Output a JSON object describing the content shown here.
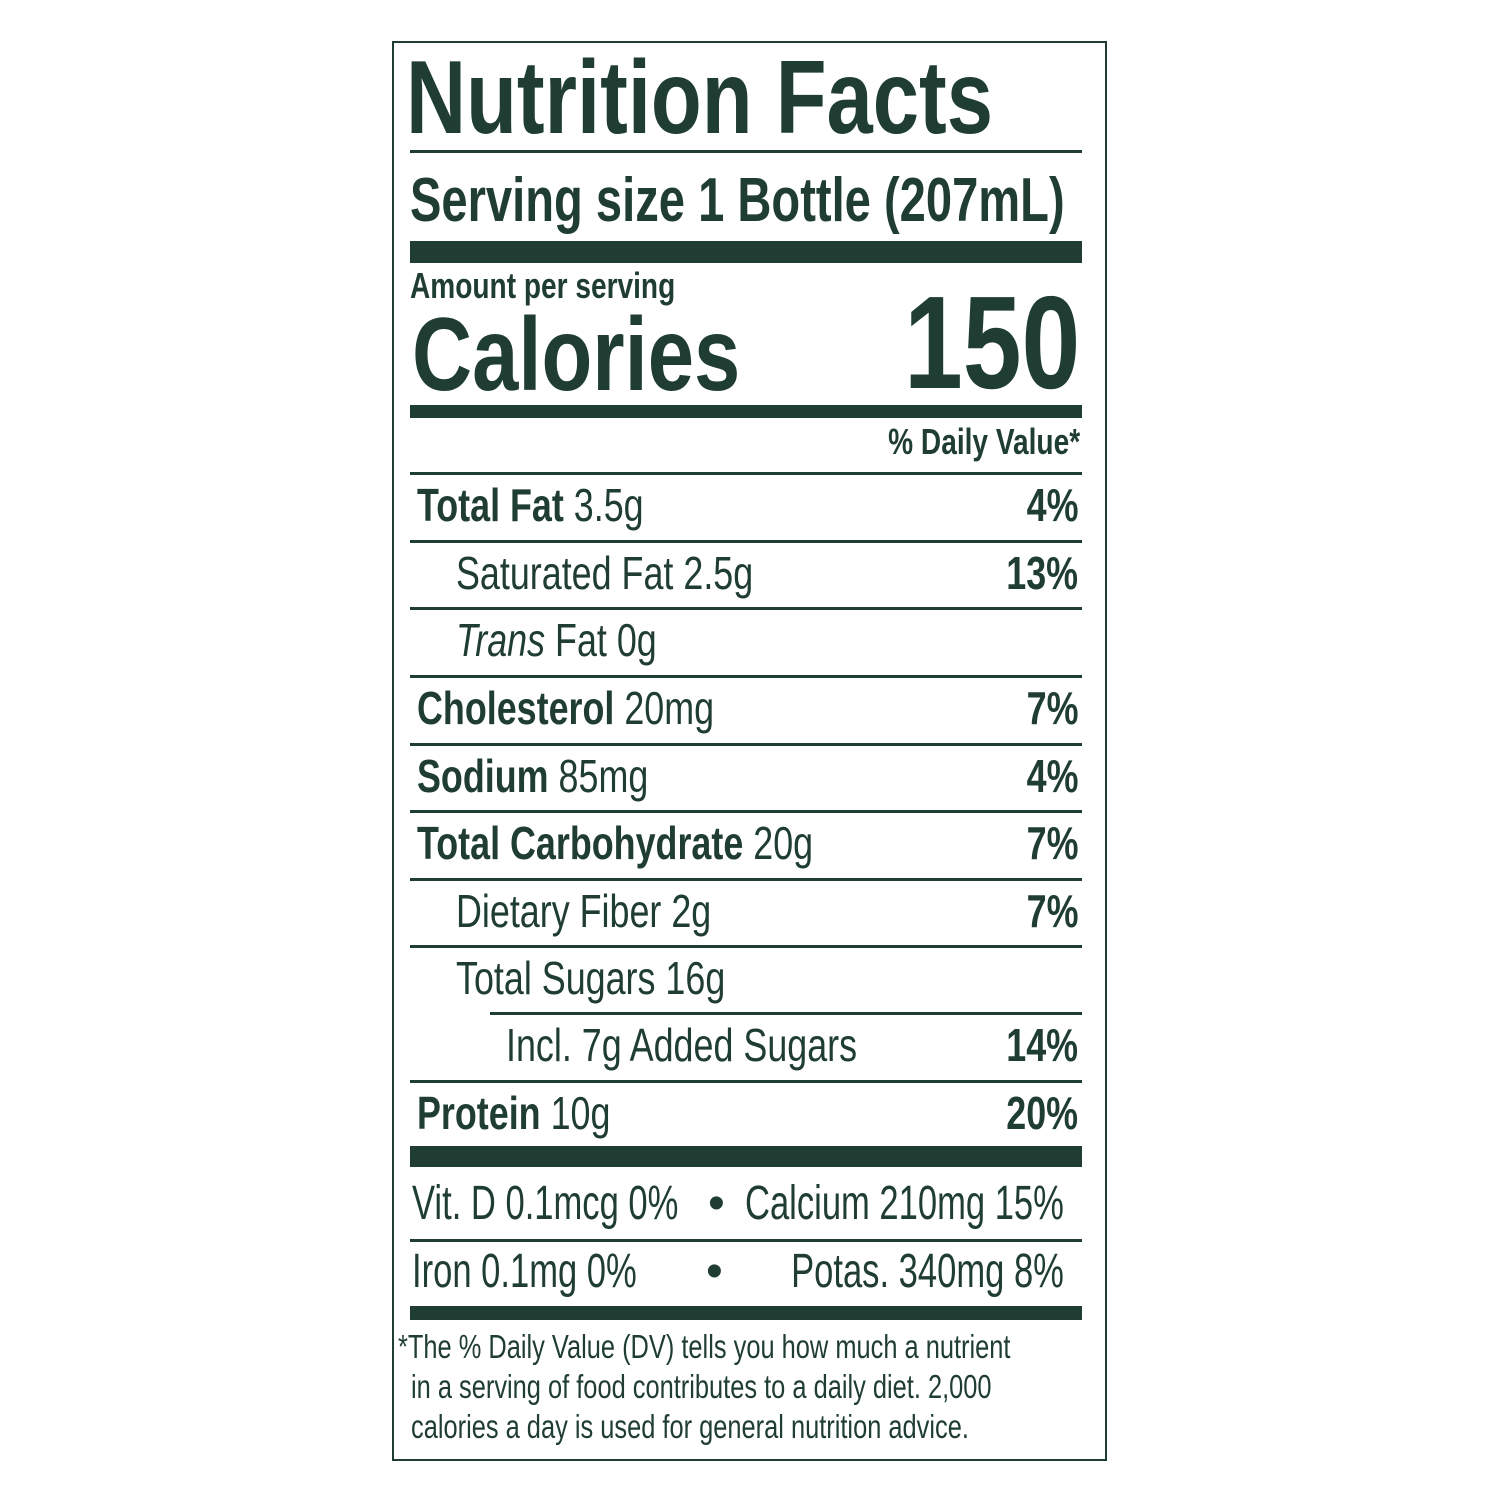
{
  "label": {
    "title": "Nutrition Facts",
    "serving_size": "Serving size 1 Bottle (207mL)",
    "amount_per_serving": "Amount per serving",
    "calories_label": "Calories",
    "calories_value": "150",
    "daily_value_header": "% Daily Value*",
    "nutrients": [
      {
        "name": "Total Fat",
        "amount": "3.5g",
        "dv": "4%"
      },
      {
        "name": "Saturated Fat",
        "amount": "2.5g",
        "dv": "13%"
      },
      {
        "name": "Trans",
        "name_suffix": "Fat",
        "amount": "0g",
        "dv": ""
      },
      {
        "name": "Cholesterol",
        "amount": "20mg",
        "dv": "7%"
      },
      {
        "name": "Sodium",
        "amount": "85mg",
        "dv": "4%"
      },
      {
        "name": "Total Carbohydrate",
        "amount": "20g",
        "dv": "7%"
      },
      {
        "name": "Dietary Fiber",
        "amount": "2g",
        "dv": "7%"
      },
      {
        "name": "Total Sugars",
        "amount": "16g",
        "dv": ""
      },
      {
        "name": "Incl. 7g Added Sugars",
        "amount": "",
        "dv": "14%"
      },
      {
        "name": "Protein",
        "amount": "10g",
        "dv": "20%"
      }
    ],
    "vitamins": {
      "vit_d": "Vit. D 0.1mcg 0%",
      "calcium": "Calcium 210mg 15%",
      "iron": "Iron 0.1mg 0%",
      "potassium": "Potas. 340mg 8%",
      "separator": "•"
    },
    "footnote": [
      "*The % Daily Value (DV) tells you how much a nutrient",
      "in a serving of food contributes to a daily diet. 2,000",
      "calories a day is used for general nutrition advice."
    ]
  },
  "colors": {
    "ink": "#1f3d33",
    "background": "#ffffff"
  }
}
